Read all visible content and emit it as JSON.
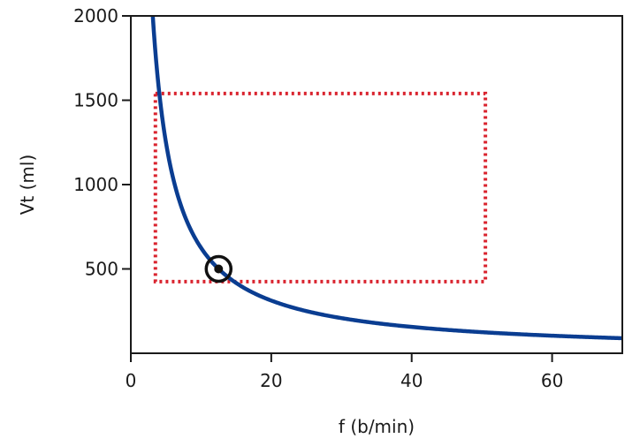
{
  "chart_data": {
    "type": "line",
    "xlabel": "f (b/min)",
    "ylabel": "Vt (ml)",
    "xlim": [
      0,
      70
    ],
    "ylim": [
      0,
      2000
    ],
    "x_ticks": [
      0,
      20,
      40,
      60
    ],
    "y_ticks": [
      500,
      1000,
      1500,
      2000
    ],
    "grid": false,
    "series": [
      {
        "color": "#0a3d91",
        "formula": "Vt = 6250 / f",
        "x": [
          2.6,
          3,
          4,
          5,
          6,
          8,
          10,
          12.5,
          15,
          20,
          25,
          30,
          40,
          50,
          60,
          70
        ],
        "y": [
          2404,
          2083,
          1563,
          1250,
          1042,
          781,
          625,
          500,
          417,
          313,
          250,
          208,
          156,
          125,
          104,
          89
        ]
      }
    ],
    "region": {
      "color": "#d9232e",
      "x_range": [
        3.5,
        50.5
      ],
      "y_range": [
        425,
        1540
      ]
    },
    "marker": {
      "x": 12.5,
      "y": 500
    }
  }
}
